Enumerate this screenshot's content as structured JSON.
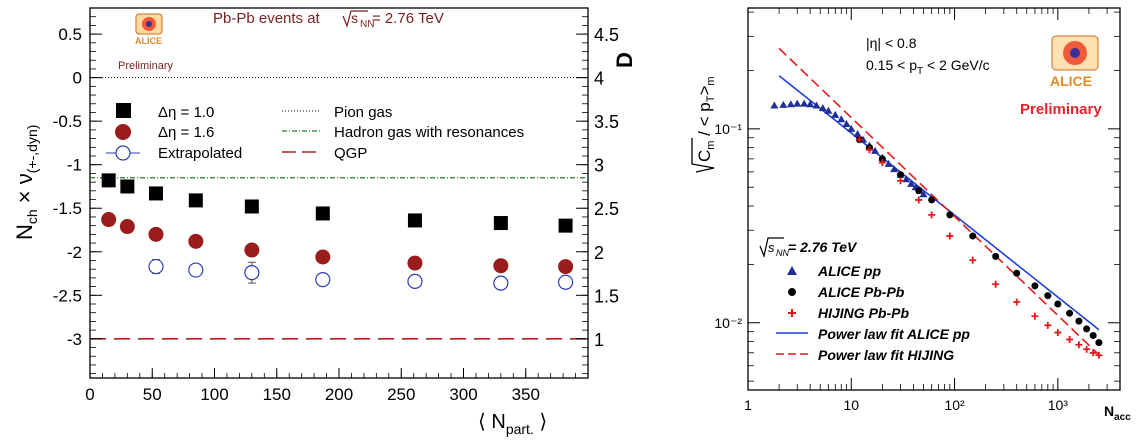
{
  "chart_data": [
    {
      "type": "scatter",
      "title": "Pb-Pb events at",
      "title_energy": "= 2.76 TeV",
      "title_sqrt": "s",
      "title_sqrt_sub": "NN",
      "preliminary": "Preliminary",
      "logo_text": "ALICE",
      "xlabel": "N",
      "xlabel_sub": "part.",
      "ylabel_left": "N",
      "ylabel_left_sub1": "ch",
      "ylabel_left_mid": " × ν",
      "ylabel_left_sub2": "(+-,dyn)",
      "ylabel_right": "D",
      "xlim": [
        0,
        400
      ],
      "ylim": [
        -3.45,
        0.8
      ],
      "x_ticks": [
        0,
        50,
        100,
        150,
        200,
        250,
        300,
        350
      ],
      "x_tick_labels": [
        "0",
        "50",
        "100",
        "150",
        "200",
        "250",
        "300",
        "350"
      ],
      "y_ticks": [
        0.5,
        0,
        -0.5,
        -1,
        -1.5,
        -2,
        -2.5,
        -3
      ],
      "y_tick_labels": [
        "0.5",
        "0",
        "-0.5",
        "-1",
        "-1.5",
        "-2",
        "-2.5",
        "-3"
      ],
      "right_axis_ticks": [
        4.5,
        4,
        3.5,
        3,
        2.5,
        2,
        1.5,
        1
      ],
      "right_axis_tick_labels": [
        "4.5",
        "4",
        "3.5",
        "3",
        "2.5",
        "2",
        "1.5",
        "1"
      ],
      "legend": {
        "deta10": "Δη = 1.0",
        "deta16": "Δη = 1.6",
        "extrap": "Extrapolated",
        "pion": "Pion gas",
        "hadron": "Hadron gas with resonances",
        "qgp": "QGP"
      },
      "reference_lines": [
        {
          "name": "Pion gas",
          "y": 0.0,
          "style": "dotted",
          "color": "#000000"
        },
        {
          "name": "Hadron gas with resonances",
          "y": -1.15,
          "style": "dash-dot",
          "color": "#2a7a2a"
        },
        {
          "name": "QGP",
          "y": -3.0,
          "style": "long-dash",
          "color": "#b22222"
        }
      ],
      "series": [
        {
          "name": "Δη = 1.0",
          "marker": "filled-square",
          "color": "#000000",
          "x": [
            15,
            30,
            53,
            85,
            130,
            187,
            261,
            330,
            382
          ],
          "y": [
            -1.18,
            -1.25,
            -1.33,
            -1.41,
            -1.48,
            -1.56,
            -1.64,
            -1.67,
            -1.7
          ]
        },
        {
          "name": "Δη = 1.6",
          "marker": "filled-circle",
          "color": "#9b1c1c",
          "x": [
            15,
            30,
            53,
            85,
            130,
            187,
            261,
            330,
            382
          ],
          "y": [
            -1.63,
            -1.71,
            -1.8,
            -1.88,
            -1.98,
            -2.06,
            -2.13,
            -2.16,
            -2.17
          ]
        },
        {
          "name": "Extrapolated",
          "marker": "open-circle",
          "color": "#2b3fb5",
          "x": [
            53,
            85,
            130,
            187,
            261,
            330,
            382
          ],
          "y": [
            -2.17,
            -2.21,
            -2.24,
            -2.32,
            -2.34,
            -2.36,
            -2.35
          ],
          "err": [
            0.08,
            0.06,
            0.12,
            0.04,
            0.04,
            0.07,
            0.05
          ]
        }
      ]
    },
    {
      "type": "scatter",
      "log_x": true,
      "log_y": true,
      "xlabel": "N",
      "xlabel_sub": "acc",
      "xlim": [
        1,
        4000
      ],
      "ylim": [
        0.0045,
        0.42
      ],
      "x_tick_labels": [
        "1",
        "10",
        "10²",
        "10³"
      ],
      "y_tick_labels": [
        "10⁻¹",
        "10⁻²"
      ],
      "ylabel_sqrt": "C",
      "ylabel_sqrt_sub": "m",
      "ylabel_rest": "  / < p",
      "ylabel_sub_T": "T",
      "ylabel_close": ">",
      "ylabel_sub_m": "m",
      "annotation_eta": "|η| < 0.8",
      "annotation_pt": "0.15 < p",
      "annotation_pt_sub": "T",
      "annotation_pt_end": " < 2 GeV/c",
      "preliminary": "Preliminary",
      "logo_text": "ALICE",
      "legend_energy": "= 2.76 TeV",
      "legend_sqrt": "s",
      "legend_sqrt_sub": "NN",
      "legend": {
        "alice_pp": "ALICE pp",
        "alice_pbpb": "ALICE Pb-Pb",
        "hijing": "HIJING Pb-Pb",
        "fit_pp": "Power law fit ALICE pp",
        "fit_hijing": "Power law fit HIJING"
      },
      "series": [
        {
          "name": "ALICE pp",
          "marker": "filled-triangle",
          "color": "#1f2f9a",
          "x": [
            1.8,
            2.2,
            2.6,
            3,
            3.5,
            4,
            4.6,
            5.3,
            6,
            7,
            8,
            9,
            10,
            11.5,
            13,
            15,
            17,
            20,
            23,
            26,
            30,
            34,
            38,
            42,
            46,
            50
          ],
          "y": [
            0.132,
            0.133,
            0.134,
            0.135,
            0.135,
            0.134,
            0.132,
            0.128,
            0.124,
            0.118,
            0.112,
            0.106,
            0.1,
            0.094,
            0.088,
            0.082,
            0.077,
            0.071,
            0.066,
            0.062,
            0.058,
            0.055,
            0.052,
            0.05,
            0.048,
            0.046
          ]
        },
        {
          "name": "ALICE Pb-Pb",
          "marker": "filled-circle",
          "color": "#000000",
          "x": [
            12,
            15,
            20,
            30,
            45,
            60,
            90,
            150,
            250,
            400,
            600,
            800,
            1000,
            1300,
            1600,
            1900,
            2200,
            2500
          ],
          "y": [
            0.088,
            0.08,
            0.07,
            0.058,
            0.048,
            0.043,
            0.036,
            0.028,
            0.022,
            0.018,
            0.0155,
            0.0138,
            0.0125,
            0.0112,
            0.0102,
            0.0093,
            0.0086,
            0.0079
          ]
        },
        {
          "name": "HIJING Pb-Pb",
          "marker": "cross",
          "color": "#e31a1c",
          "x": [
            12,
            15,
            20,
            30,
            45,
            60,
            90,
            150,
            250,
            400,
            600,
            800,
            1000,
            1300,
            1600,
            1900,
            2200,
            2500
          ],
          "y": [
            0.088,
            0.078,
            0.067,
            0.054,
            0.043,
            0.036,
            0.028,
            0.021,
            0.0158,
            0.0128,
            0.0108,
            0.0097,
            0.0089,
            0.0082,
            0.0077,
            0.0073,
            0.007,
            0.0068
          ]
        },
        {
          "name": "Power law fit ALICE pp",
          "line": "solid",
          "color": "#1f3fd8",
          "x": [
            2,
            2500
          ],
          "y": [
            0.188,
            0.0092
          ]
        },
        {
          "name": "Power law fit HIJING",
          "line": "dashed",
          "color": "#e31a1c",
          "x": [
            2,
            2600
          ],
          "y": [
            0.26,
            0.0067
          ]
        }
      ]
    }
  ]
}
